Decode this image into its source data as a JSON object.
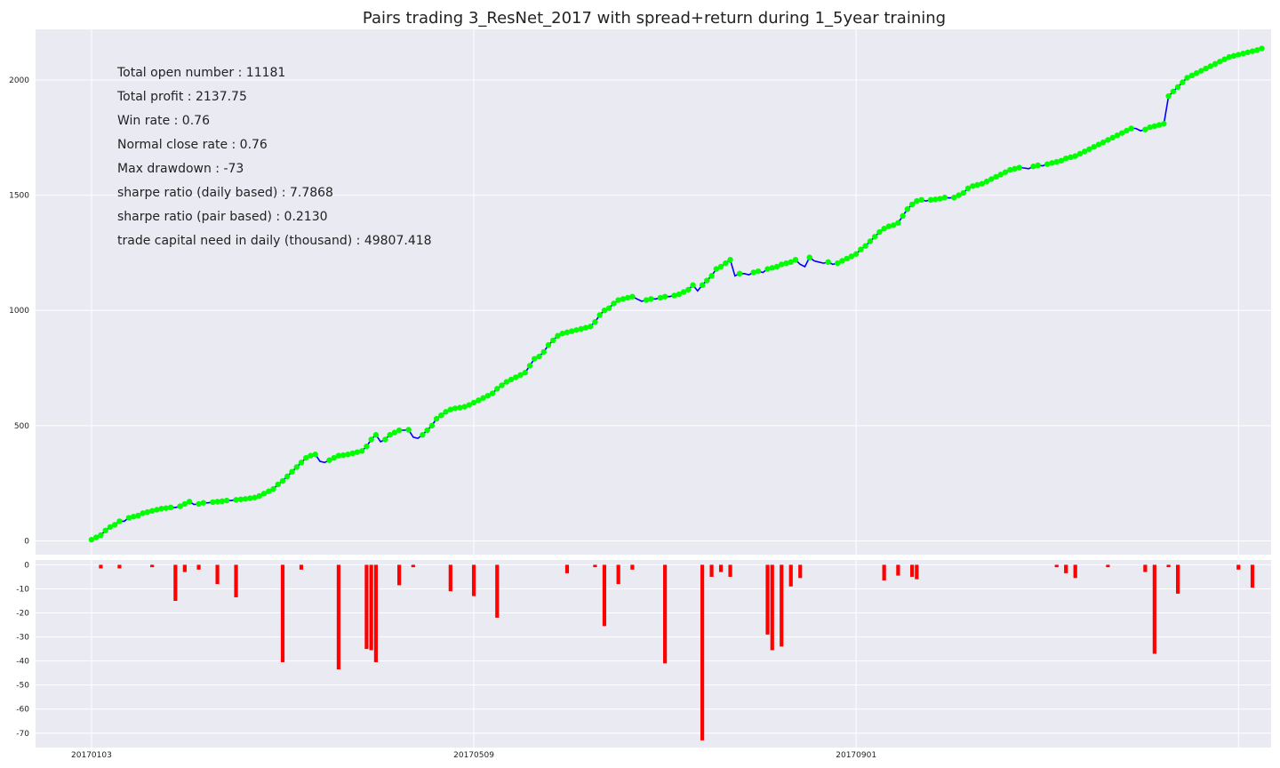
{
  "colors": {
    "panel_bg": "#EAEAF2",
    "grid": "#FFFFFF",
    "line": "#0000FF",
    "marker": "#00FF00",
    "drawdown": "#FF0000",
    "text": "#222222"
  },
  "chart_data": [
    {
      "type": "line",
      "title": "Pairs trading 3_ResNet_2017 with spread+return during 1_5year training",
      "stats": [
        "Total open number : 11181",
        "Total profit : 2137.75",
        "Win rate : 0.76",
        "Normal close rate : 0.76",
        "Max drawdown : -73",
        "sharpe ratio (daily based) : 7.7868",
        "sharpe ratio (pair based) : 0.2130",
        "trade capital need in daily (thousand) : 49807.418"
      ],
      "x_ticks": [
        {
          "label": "20170103",
          "index": 0
        },
        {
          "label": "20170509",
          "index": 82
        },
        {
          "label": "20170901",
          "index": 164
        }
      ],
      "y_ticks": [
        0,
        500,
        1000,
        1500,
        2000
      ],
      "ylim": [
        -60,
        2220
      ],
      "xlim": [
        -12,
        253
      ],
      "grid": true,
      "series": [
        {
          "values": [
            5,
            15,
            25,
            45,
            60,
            70,
            85,
            85,
            100,
            105,
            110,
            120,
            125,
            130,
            135,
            140,
            142,
            145,
            145,
            150,
            160,
            170,
            158,
            160,
            165,
            165,
            168,
            170,
            172,
            175,
            175,
            178,
            180,
            182,
            185,
            188,
            195,
            205,
            215,
            225,
            245,
            260,
            280,
            300,
            320,
            340,
            360,
            370,
            375,
            345,
            340,
            350,
            360,
            370,
            372,
            375,
            380,
            385,
            390,
            410,
            440,
            460,
            430,
            440,
            460,
            470,
            480,
            480,
            482,
            450,
            445,
            460,
            480,
            500,
            530,
            545,
            560,
            570,
            575,
            578,
            582,
            590,
            600,
            610,
            620,
            630,
            640,
            660,
            675,
            690,
            700,
            710,
            720,
            730,
            760,
            790,
            800,
            820,
            850,
            870,
            890,
            900,
            905,
            910,
            915,
            920,
            925,
            930,
            950,
            980,
            1000,
            1010,
            1030,
            1045,
            1050,
            1055,
            1060,
            1050,
            1040,
            1045,
            1050,
            1050,
            1055,
            1060,
            1060,
            1065,
            1070,
            1080,
            1090,
            1110,
            1085,
            1110,
            1130,
            1150,
            1180,
            1190,
            1205,
            1220,
            1150,
            1160,
            1160,
            1155,
            1165,
            1170,
            1165,
            1180,
            1185,
            1190,
            1200,
            1205,
            1210,
            1220,
            1200,
            1190,
            1230,
            1215,
            1210,
            1205,
            1210,
            1200,
            1205,
            1215,
            1225,
            1235,
            1245,
            1265,
            1280,
            1300,
            1320,
            1340,
            1355,
            1365,
            1370,
            1380,
            1410,
            1440,
            1460,
            1475,
            1480,
            1475,
            1480,
            1482,
            1485,
            1490,
            1488,
            1490,
            1500,
            1510,
            1530,
            1540,
            1545,
            1550,
            1560,
            1570,
            1580,
            1590,
            1600,
            1610,
            1615,
            1620,
            1618,
            1615,
            1625,
            1630,
            1628,
            1635,
            1640,
            1645,
            1650,
            1660,
            1665,
            1670,
            1680,
            1690,
            1700,
            1710,
            1720,
            1730,
            1740,
            1750,
            1760,
            1770,
            1780,
            1790,
            1790,
            1780,
            1785,
            1795,
            1800,
            1805,
            1810,
            1930,
            1950,
            1970,
            1990,
            2010,
            2020,
            2030,
            2040,
            2050,
            2060,
            2070,
            2080,
            2090,
            2100,
            2105,
            2110,
            2115,
            2120,
            2125,
            2130,
            2137
          ]
        }
      ]
    },
    {
      "type": "bar",
      "y_ticks": [
        0,
        -10,
        -20,
        -30,
        -40,
        -50,
        -60,
        -70
      ],
      "ylim": [
        -76,
        2
      ],
      "grid": true,
      "bars": [
        [
          2,
          -1.5
        ],
        [
          6,
          -1.5
        ],
        [
          13,
          -1
        ],
        [
          18,
          -15
        ],
        [
          20,
          -3
        ],
        [
          23,
          -2
        ],
        [
          27,
          -8
        ],
        [
          31,
          -13.5
        ],
        [
          41,
          -40.5
        ],
        [
          45,
          -2
        ],
        [
          53,
          -43.5
        ],
        [
          59,
          -35
        ],
        [
          60,
          -35.5
        ],
        [
          61,
          -40.5
        ],
        [
          66,
          -8.5
        ],
        [
          69,
          -1
        ],
        [
          77,
          -11
        ],
        [
          82,
          -13
        ],
        [
          87,
          -22
        ],
        [
          102,
          -3.5
        ],
        [
          108,
          -1
        ],
        [
          110,
          -25.5
        ],
        [
          113,
          -8
        ],
        [
          116,
          -2
        ],
        [
          123,
          -41
        ],
        [
          131,
          -73
        ],
        [
          133,
          -5
        ],
        [
          135,
          -3
        ],
        [
          137,
          -5
        ],
        [
          145,
          -29
        ],
        [
          146,
          -35.5
        ],
        [
          148,
          -34
        ],
        [
          150,
          -9
        ],
        [
          152,
          -5.5
        ],
        [
          170,
          -6.5
        ],
        [
          173,
          -4.5
        ],
        [
          176,
          -5
        ],
        [
          177,
          -6
        ],
        [
          207,
          -1
        ],
        [
          209,
          -3.5
        ],
        [
          211,
          -5.5
        ],
        [
          218,
          -1
        ],
        [
          226,
          -3
        ],
        [
          228,
          -37
        ],
        [
          231,
          -1
        ],
        [
          233,
          -12
        ],
        [
          246,
          -2
        ],
        [
          249,
          -9.5
        ]
      ]
    }
  ]
}
